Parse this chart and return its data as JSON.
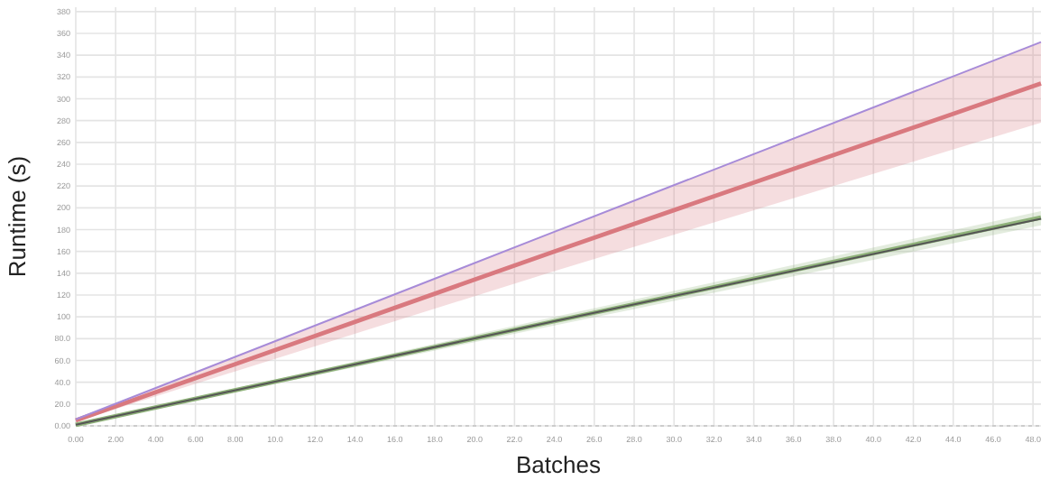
{
  "chart_data": {
    "type": "line",
    "xlabel": "Batches",
    "ylabel": "Runtime (s)",
    "x": [
      0,
      24,
      48.4
    ],
    "xlim": [
      0,
      48.4
    ],
    "ylim": [
      0,
      384
    ],
    "xticks": [
      {
        "value": 0,
        "label": "0.00"
      },
      {
        "value": 2,
        "label": "2.00"
      },
      {
        "value": 4,
        "label": "4.00"
      },
      {
        "value": 6,
        "label": "6.00"
      },
      {
        "value": 8,
        "label": "8.00"
      },
      {
        "value": 10,
        "label": "10.0"
      },
      {
        "value": 12,
        "label": "12.0"
      },
      {
        "value": 14,
        "label": "14.0"
      },
      {
        "value": 16,
        "label": "16.0"
      },
      {
        "value": 18,
        "label": "18.0"
      },
      {
        "value": 20,
        "label": "20.0"
      },
      {
        "value": 22,
        "label": "22.0"
      },
      {
        "value": 24,
        "label": "24.0"
      },
      {
        "value": 26,
        "label": "26.0"
      },
      {
        "value": 28,
        "label": "28.0"
      },
      {
        "value": 30,
        "label": "30.0"
      },
      {
        "value": 32,
        "label": "32.0"
      },
      {
        "value": 34,
        "label": "34.0"
      },
      {
        "value": 36,
        "label": "36.0"
      },
      {
        "value": 38,
        "label": "38.0"
      },
      {
        "value": 40,
        "label": "40.0"
      },
      {
        "value": 42,
        "label": "42.0"
      },
      {
        "value": 44,
        "label": "44.0"
      },
      {
        "value": 46,
        "label": "46.0"
      },
      {
        "value": 48,
        "label": "48.0"
      }
    ],
    "yticks": [
      {
        "value": 0,
        "label": "0.00"
      },
      {
        "value": 20,
        "label": "20.0"
      },
      {
        "value": 40,
        "label": "40.0"
      },
      {
        "value": 60,
        "label": "60.0"
      },
      {
        "value": 80,
        "label": "80.0"
      },
      100,
      120,
      140,
      160,
      180,
      200,
      220,
      240,
      260,
      280,
      300,
      320,
      340,
      360,
      380
    ],
    "grid": true,
    "marker": "none",
    "line_style": "solid",
    "series": [
      {
        "color": "#d9797f",
        "values": [
          5,
          160,
          314
        ],
        "lower": [
          4,
          142,
          278
        ],
        "upper": [
          6,
          178,
          352
        ]
      },
      {
        "color": "#a78bd8",
        "values": [
          6,
          178,
          352
        ]
      },
      {
        "color": "#8fb27a",
        "values": [
          1,
          96,
          191
        ],
        "lower": [
          0.5,
          92,
          184
        ],
        "upper": [
          1.5,
          100,
          197
        ]
      },
      {
        "color": "#555555",
        "values": [
          1,
          96,
          190
        ]
      }
    ]
  }
}
